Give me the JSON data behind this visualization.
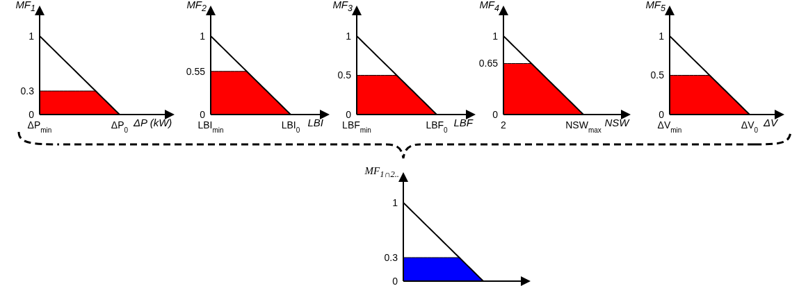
{
  "chart_data": [
    {
      "type": "line",
      "ylabel": "MF$_{1}$",
      "xlabel": "ΔP (kW)",
      "marker": "none",
      "ylim": [
        0,
        1.3
      ],
      "yticks": [
        0,
        0.3,
        1
      ],
      "categories": [
        "ΔP$_{min}$",
        null,
        null,
        null,
        null,
        null,
        null,
        null,
        null,
        null,
        null,
        null,
        null,
        null,
        null,
        null,
        null,
        null,
        null,
        null,
        "ΔP$_{0}$",
        null,
        null,
        null,
        null,
        null,
        null,
        null,
        null,
        null,
        null,
        null,
        null
      ],
      "series": [
        {
          "type": "area",
          "color": "#ff0000",
          "values": [
            0.3,
            0.3,
            0.3,
            0.3,
            0.3,
            0.3,
            0.3,
            0.3,
            0.3,
            0.3,
            0.3,
            0.3,
            0.3,
            0.3,
            0.3,
            0.25,
            0.2,
            0.15,
            0.1,
            0.05,
            0,
            null,
            null,
            null,
            null,
            null,
            null,
            null,
            null,
            null,
            null,
            null,
            null
          ]
        },
        {
          "color": "#000000",
          "values": [
            1,
            0.95,
            0.9,
            0.85,
            0.8,
            0.75,
            0.7,
            0.65,
            0.6,
            0.55,
            0.5,
            0.45,
            0.4,
            0.35,
            0.3,
            0.25,
            0.2,
            0.15,
            0.1,
            0.05,
            0,
            null,
            null,
            null,
            null,
            null,
            null,
            null,
            null,
            null,
            null,
            null,
            null
          ]
        }
      ]
    },
    {
      "type": "line",
      "ylabel": "MF$_{2}$",
      "xlabel": "LBI",
      "marker": "none",
      "ylim": [
        0,
        1.3
      ],
      "yticks": [
        0,
        0.55,
        1
      ],
      "categories": [
        "LBI$_{min}$",
        null,
        null,
        null,
        null,
        null,
        null,
        null,
        null,
        null,
        null,
        null,
        null,
        null,
        null,
        null,
        null,
        null,
        null,
        null,
        "LBI$_{0}$",
        null,
        null,
        null,
        null,
        null,
        null,
        null,
        null
      ],
      "series": [
        {
          "type": "area",
          "color": "#ff0000",
          "values": [
            0.55,
            0.55,
            0.55,
            0.55,
            0.55,
            0.55,
            0.55,
            0.55,
            0.55,
            0.55,
            0.5,
            0.45,
            0.4,
            0.35,
            0.3,
            0.25,
            0.2,
            0.15,
            0.1,
            0.05,
            0,
            null,
            null,
            null,
            null,
            null,
            null,
            null,
            null
          ]
        },
        {
          "color": "#000000",
          "values": [
            1,
            0.95,
            0.9,
            0.85,
            0.8,
            0.75,
            0.7,
            0.65,
            0.6,
            0.55,
            0.5,
            0.45,
            0.4,
            0.35,
            0.3,
            0.25,
            0.2,
            0.15,
            0.1,
            0.05,
            0,
            null,
            null,
            null,
            null,
            null,
            null,
            null,
            null
          ]
        }
      ]
    },
    {
      "type": "line",
      "ylabel": "MF$_{3}$",
      "xlabel": "LBF",
      "marker": "none",
      "ylim": [
        0,
        1.3
      ],
      "yticks": [
        0,
        0.5,
        1
      ],
      "categories": [
        "LBF$_{min}$",
        null,
        null,
        null,
        null,
        null,
        null,
        null,
        null,
        null,
        null,
        null,
        null,
        null,
        null,
        null,
        null,
        null,
        null,
        null,
        "LBF$_{0}$",
        null,
        null,
        null,
        null,
        null,
        null,
        null,
        null
      ],
      "series": [
        {
          "type": "area",
          "color": "#ff0000",
          "values": [
            0.5,
            0.5,
            0.5,
            0.5,
            0.5,
            0.5,
            0.5,
            0.5,
            0.5,
            0.5,
            0.5,
            0.45,
            0.4,
            0.35,
            0.3,
            0.25,
            0.2,
            0.15,
            0.1,
            0.05,
            0,
            null,
            null,
            null,
            null,
            null,
            null,
            null,
            null
          ]
        },
        {
          "color": "#000000",
          "values": [
            1,
            0.95,
            0.9,
            0.85,
            0.8,
            0.75,
            0.7,
            0.65,
            0.6,
            0.55,
            0.5,
            0.45,
            0.4,
            0.35,
            0.3,
            0.25,
            0.2,
            0.15,
            0.1,
            0.05,
            0,
            null,
            null,
            null,
            null,
            null,
            null,
            null,
            null
          ]
        }
      ]
    },
    {
      "type": "line",
      "ylabel": "MF$_{4}$",
      "xlabel": "NSW",
      "marker": "none",
      "ylim": [
        0,
        1.3
      ],
      "yticks": [
        0,
        0.65,
        1
      ],
      "categories": [
        "2",
        null,
        null,
        null,
        null,
        null,
        null,
        null,
        null,
        null,
        null,
        null,
        null,
        null,
        null,
        null,
        null,
        null,
        null,
        null,
        "NSW$_{max}$",
        null,
        null,
        null,
        null,
        null,
        null,
        null,
        null,
        null,
        null
      ],
      "series": [
        {
          "type": "area",
          "color": "#ff0000",
          "values": [
            0.65,
            0.65,
            0.65,
            0.65,
            0.65,
            0.65,
            0.65,
            0.65,
            0.6,
            0.55,
            0.5,
            0.45,
            0.4,
            0.35,
            0.3,
            0.25,
            0.2,
            0.15,
            0.1,
            0.05,
            0,
            null,
            null,
            null,
            null,
            null,
            null,
            null,
            null,
            null,
            null
          ]
        },
        {
          "color": "#000000",
          "values": [
            1,
            0.95,
            0.9,
            0.85,
            0.8,
            0.75,
            0.7,
            0.65,
            0.6,
            0.55,
            0.5,
            0.45,
            0.4,
            0.35,
            0.3,
            0.25,
            0.2,
            0.15,
            0.1,
            0.05,
            0,
            null,
            null,
            null,
            null,
            null,
            null,
            null,
            null,
            null,
            null
          ]
        }
      ]
    },
    {
      "type": "line",
      "ylabel": "MF$_{5}$",
      "xlabel": "ΔV",
      "marker": "none",
      "ylim": [
        0,
        1.3
      ],
      "yticks": [
        0,
        0.5,
        1
      ],
      "categories": [
        "ΔV$_{min}$",
        null,
        null,
        null,
        null,
        null,
        null,
        null,
        null,
        null,
        null,
        null,
        null,
        null,
        null,
        null,
        null,
        null,
        null,
        null,
        "ΔV$_{0}$",
        null,
        null,
        null,
        null,
        null,
        null,
        null
      ],
      "series": [
        {
          "type": "area",
          "color": "#ff0000",
          "values": [
            0.5,
            0.5,
            0.5,
            0.5,
            0.5,
            0.5,
            0.5,
            0.5,
            0.5,
            0.5,
            0.5,
            0.45,
            0.4,
            0.35,
            0.3,
            0.25,
            0.2,
            0.15,
            0.1,
            0.05,
            0,
            null,
            null,
            null,
            null,
            null,
            null,
            null
          ]
        },
        {
          "color": "#000000",
          "values": [
            1,
            0.95,
            0.9,
            0.85,
            0.8,
            0.75,
            0.7,
            0.65,
            0.6,
            0.55,
            0.5,
            0.45,
            0.4,
            0.35,
            0.3,
            0.25,
            0.2,
            0.15,
            0.1,
            0.05,
            0,
            null,
            null,
            null,
            null,
            null,
            null,
            null
          ]
        }
      ]
    },
    {
      "type": "line",
      "ylabel": "MF$_{1∩2..}$",
      "marker": "none",
      "tick_labels": "y",
      "ylim": [
        0,
        1.3
      ],
      "yticks": [
        0,
        0.3,
        1
      ],
      "categories": [
        null,
        null,
        null,
        null,
        null,
        null,
        null,
        null,
        null,
        null,
        null,
        null,
        null,
        null,
        null,
        null,
        null,
        null,
        null,
        null,
        null,
        null,
        null,
        null,
        null,
        null,
        null,
        null,
        null,
        null,
        null
      ],
      "series": [
        {
          "type": "area",
          "color": "#0000ff",
          "values": [
            0.3,
            0.3,
            0.3,
            0.3,
            0.3,
            0.3,
            0.3,
            0.3,
            0.3,
            0.3,
            0.3,
            0.3,
            0.3,
            0.3,
            0.3,
            0.25,
            0.2,
            0.15,
            0.1,
            0.05,
            0,
            null,
            null,
            null,
            null,
            null,
            null,
            null,
            null,
            null,
            null
          ]
        },
        {
          "color": "#000000",
          "values": [
            1,
            0.95,
            0.9,
            0.85,
            0.8,
            0.75,
            0.7,
            0.65,
            0.6,
            0.55,
            0.5,
            0.45,
            0.4,
            0.35,
            0.3,
            0.25,
            0.2,
            0.15,
            0.1,
            0.05,
            0,
            null,
            null,
            null,
            null,
            null,
            null,
            null,
            null,
            null,
            null
          ]
        }
      ]
    }
  ]
}
